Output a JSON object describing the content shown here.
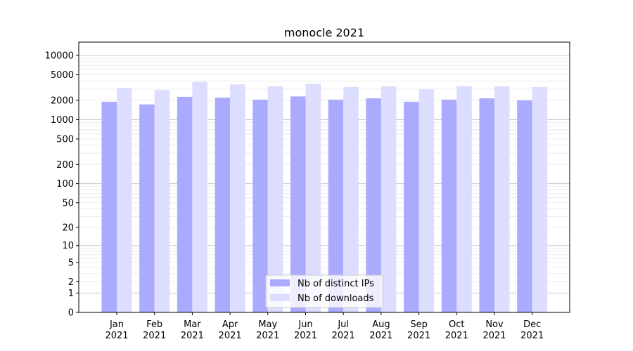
{
  "chart_data": {
    "type": "bar",
    "title": "monocle 2021",
    "xlabel": "",
    "ylabel": "",
    "yscale": "log(1+y)",
    "ylim": [
      0,
      14000
    ],
    "yticks": [
      0,
      1,
      2,
      5,
      10,
      20,
      50,
      100,
      200,
      500,
      1000,
      2000,
      5000,
      10000
    ],
    "grid": true,
    "legend_placement": "lower center",
    "categories": [
      "Jan\n2021",
      "Feb\n2021",
      "Mar\n2021",
      "Apr\n2021",
      "May\n2021",
      "Jun\n2021",
      "Jul\n2021",
      "Aug\n2021",
      "Sep\n2021",
      "Oct\n2021",
      "Nov\n2021",
      "Dec\n2021"
    ],
    "series": [
      {
        "name": "Nb of distinct IPs",
        "color": "#aaaaff",
        "values": [
          1900,
          1730,
          2270,
          2200,
          2050,
          2300,
          2050,
          2150,
          1900,
          2050,
          2150,
          2000
        ]
      },
      {
        "name": "Nb of downloads",
        "color": "#ddddff",
        "values": [
          3150,
          2900,
          3860,
          3540,
          3300,
          3640,
          3240,
          3300,
          2960,
          3300,
          3300,
          3240
        ]
      }
    ]
  }
}
